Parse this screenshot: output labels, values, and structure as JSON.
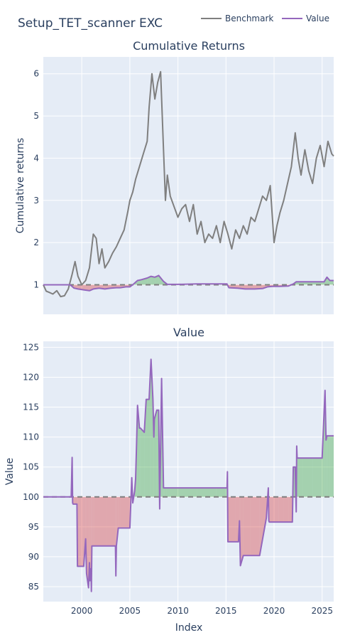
{
  "figure": {
    "title": "Setup_TET_scanner EXC",
    "xlabel": "Index",
    "legend": [
      {
        "name": "Benchmark",
        "color": "#7f7f7f"
      },
      {
        "name": "Value",
        "color": "#9467bd"
      }
    ]
  },
  "colors": {
    "benchmark": "#7f7f7f",
    "value": "#9467bd",
    "gain_fill": "#2ca02c",
    "loss_fill": "#d62728",
    "plot_bg": "#e5ecf6",
    "baseline": "#7f7f7f"
  },
  "chart_data": [
    {
      "type": "line",
      "title": "Cumulative Returns",
      "ylabel": "Cumulative returns",
      "xlim": [
        1996.0,
        2026.2
      ],
      "ylim": [
        0.3,
        6.4
      ],
      "yticks": [
        1,
        2,
        3,
        4,
        5,
        6
      ],
      "xticks": [
        2000,
        2005,
        2010,
        2015,
        2020,
        2025
      ],
      "baseline": 1,
      "legend_placement": "top-right",
      "series": [
        {
          "name": "Benchmark",
          "x": [
            1996.0,
            1996.3,
            1996.6,
            1997.0,
            1997.4,
            1997.8,
            1998.2,
            1998.6,
            1999.0,
            1999.3,
            1999.6,
            2000.0,
            2000.4,
            2000.8,
            2001.0,
            2001.2,
            2001.5,
            2001.8,
            2002.1,
            2002.4,
            2002.8,
            2003.2,
            2003.6,
            2004.0,
            2004.4,
            2004.8,
            2005.0,
            2005.3,
            2005.6,
            2006.0,
            2006.4,
            2006.8,
            2007.0,
            2007.3,
            2007.6,
            2007.9,
            2008.2,
            2008.5,
            2008.7,
            2008.9,
            2009.2,
            2009.6,
            2010.0,
            2010.4,
            2010.8,
            2011.2,
            2011.6,
            2012.0,
            2012.4,
            2012.8,
            2013.2,
            2013.6,
            2014.0,
            2014.4,
            2014.8,
            2015.2,
            2015.6,
            2016.0,
            2016.4,
            2016.8,
            2017.2,
            2017.6,
            2018.0,
            2018.4,
            2018.8,
            2019.2,
            2019.6,
            2020.0,
            2020.3,
            2020.6,
            2021.0,
            2021.4,
            2021.8,
            2022.2,
            2022.5,
            2022.8,
            2023.2,
            2023.6,
            2024.0,
            2024.4,
            2024.8,
            2025.2,
            2025.6,
            2026.0,
            2026.2
          ],
          "values": [
            1.0,
            0.85,
            0.82,
            0.78,
            0.86,
            0.72,
            0.74,
            0.9,
            1.25,
            1.55,
            1.2,
            1.0,
            1.1,
            1.4,
            1.8,
            2.2,
            2.1,
            1.5,
            1.85,
            1.4,
            1.55,
            1.75,
            1.9,
            2.1,
            2.3,
            2.75,
            3.0,
            3.2,
            3.5,
            3.8,
            4.1,
            4.4,
            5.2,
            6.0,
            5.4,
            5.8,
            6.05,
            4.2,
            3.0,
            3.6,
            3.1,
            2.85,
            2.6,
            2.8,
            2.9,
            2.5,
            2.9,
            2.2,
            2.5,
            2.0,
            2.2,
            2.1,
            2.4,
            2.0,
            2.5,
            2.2,
            1.85,
            2.3,
            2.1,
            2.4,
            2.2,
            2.6,
            2.5,
            2.8,
            3.1,
            3.0,
            3.35,
            2.0,
            2.4,
            2.7,
            3.0,
            3.4,
            3.8,
            4.6,
            4.0,
            3.6,
            4.2,
            3.7,
            3.4,
            4.0,
            4.3,
            3.8,
            4.4,
            4.1,
            4.05
          ]
        },
        {
          "name": "Value",
          "x": [
            1996.0,
            1998.8,
            1999.2,
            1999.6,
            2000.2,
            2000.8,
            2001.2,
            2001.8,
            2002.4,
            2003.0,
            2003.6,
            2004.0,
            2004.6,
            2005.0,
            2005.4,
            2005.8,
            2006.2,
            2006.8,
            2007.2,
            2007.6,
            2008.0,
            2008.5,
            2008.9,
            2010.0,
            2012.0,
            2014.0,
            2015.1,
            2015.3,
            2016.2,
            2017.0,
            2018.0,
            2018.8,
            2019.3,
            2019.8,
            2020.5,
            2021.5,
            2022.0,
            2022.3,
            2023.0,
            2024.0,
            2025.2,
            2025.5,
            2025.8,
            2026.2
          ],
          "values": [
            1.0,
            1.0,
            0.92,
            0.9,
            0.88,
            0.86,
            0.9,
            0.92,
            0.9,
            0.92,
            0.93,
            0.93,
            0.95,
            0.95,
            1.02,
            1.1,
            1.12,
            1.16,
            1.2,
            1.18,
            1.22,
            1.08,
            1.01,
            1.01,
            1.02,
            1.02,
            1.02,
            0.93,
            0.92,
            0.9,
            0.9,
            0.91,
            0.95,
            0.96,
            0.96,
            0.97,
            1.02,
            1.07,
            1.07,
            1.07,
            1.07,
            1.18,
            1.1,
            1.1
          ]
        }
      ]
    },
    {
      "type": "line",
      "title": "Value",
      "ylabel": "Value",
      "xlabel": "Index",
      "xlim": [
        1996.0,
        2026.2
      ],
      "ylim": [
        82.5,
        126
      ],
      "yticks": [
        85,
        90,
        95,
        100,
        105,
        110,
        115,
        120,
        125
      ],
      "xticks": [
        2000,
        2005,
        2010,
        2015,
        2020,
        2025
      ],
      "baseline": 100,
      "series": [
        {
          "name": "Value",
          "x": [
            1996.0,
            1998.9,
            1999.0,
            1999.05,
            1999.1,
            1999.2,
            1999.5,
            1999.55,
            1999.6,
            2000.2,
            2000.4,
            2000.5,
            2000.7,
            2000.8,
            2000.85,
            2000.95,
            2001.0,
            2001.05,
            2001.1,
            2001.2,
            2001.3,
            2002.5,
            2003.5,
            2003.55,
            2003.6,
            2003.8,
            2004.0,
            2004.6,
            2005.0,
            2005.2,
            2005.3,
            2005.5,
            2005.6,
            2005.7,
            2005.8,
            2006.0,
            2006.1,
            2006.5,
            2006.7,
            2007.0,
            2007.2,
            2007.4,
            2007.5,
            2007.55,
            2007.8,
            2008.0,
            2008.1,
            2008.3,
            2008.5,
            2008.6,
            2008.7,
            2008.8,
            2010.0,
            2012.0,
            2014.0,
            2015.1,
            2015.15,
            2015.2,
            2016.0,
            2016.3,
            2016.4,
            2016.5,
            2016.8,
            2017.5,
            2018.5,
            2019.2,
            2019.4,
            2019.45,
            2019.5,
            2020.0,
            2020.5,
            2021.0,
            2021.5,
            2021.9,
            2022.0,
            2022.2,
            2022.3,
            2022.35,
            2022.4,
            2023.0,
            2024.0,
            2025.0,
            2025.3,
            2025.4,
            2025.5,
            2025.6,
            2025.8,
            2026.2
          ],
          "values": [
            100,
            100,
            106.6,
            99,
            98.8,
            98.8,
            98.8,
            88.4,
            88.4,
            88.4,
            93,
            87.2,
            84.8,
            89,
            86,
            88,
            84.2,
            91.8,
            91.8,
            91.8,
            91.8,
            91.8,
            91.8,
            86.8,
            91.8,
            94.8,
            94.8,
            94.8,
            94.8,
            103.2,
            99,
            101,
            103,
            109,
            115.3,
            111.5,
            111.5,
            110.8,
            116.3,
            116.3,
            123,
            116.3,
            110,
            113,
            114.5,
            114.5,
            98,
            119.8,
            101.5,
            101.5,
            101.5,
            101.5,
            101.5,
            101.5,
            101.5,
            101.5,
            104.2,
            92.5,
            92.5,
            92.5,
            96,
            88.5,
            90.2,
            90.2,
            90.2,
            96.5,
            101.5,
            96,
            95.8,
            95.8,
            95.8,
            95.8,
            95.8,
            95.8,
            105,
            105,
            97.5,
            108.5,
            106.5,
            106.5,
            106.5,
            106.5,
            117.8,
            109.5,
            110.2,
            110.2,
            110.2,
            110.2
          ]
        }
      ]
    }
  ]
}
